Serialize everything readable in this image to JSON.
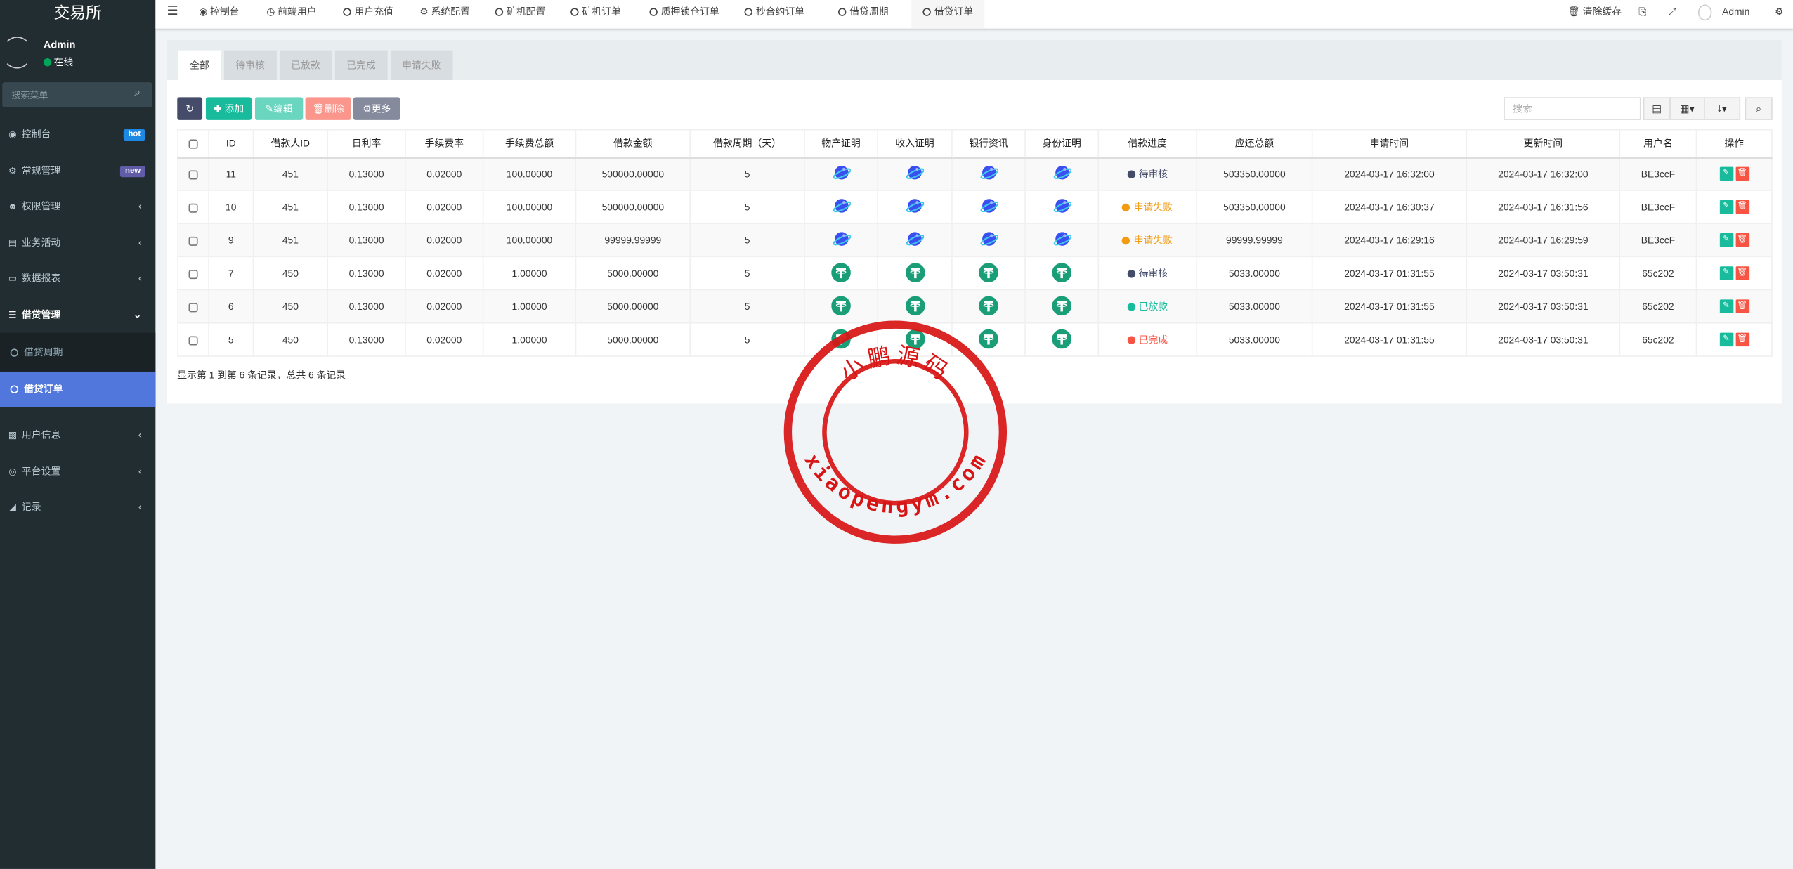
{
  "app": {
    "title": "交易所"
  },
  "user": {
    "name": "Admin",
    "status": "在线"
  },
  "sidebar": {
    "search_placeholder": "搜索菜单",
    "items": [
      {
        "label": "控制台",
        "icon": "dashboard-icon",
        "badge": "hot",
        "badge_color": "#3c8dbc"
      },
      {
        "label": "常规管理",
        "icon": "cogs-icon",
        "badge": "new",
        "badge_color": "#605ca8"
      },
      {
        "label": "权限管理",
        "icon": "users-icon"
      },
      {
        "label": "业务活动",
        "icon": "newspaper-icon"
      },
      {
        "label": "数据报表",
        "icon": "file-icon"
      },
      {
        "label": "借贷管理",
        "icon": "list-icon",
        "open": true,
        "children": [
          {
            "label": "借贷周期"
          },
          {
            "label": "借贷订单",
            "active": true
          }
        ]
      },
      {
        "label": "用户信息",
        "icon": "contact-card-icon"
      },
      {
        "label": "平台设置",
        "icon": "target-icon"
      },
      {
        "label": "记录",
        "icon": "area-chart-icon"
      }
    ]
  },
  "topnav": {
    "items": [
      {
        "label": "控制台",
        "icon": "dashboard-icon"
      },
      {
        "label": "前端用户",
        "icon": "clock-icon"
      },
      {
        "label": "用户充值",
        "icon": "circle-icon"
      },
      {
        "label": "系统配置",
        "icon": "gear-icon"
      },
      {
        "label": "矿机配置",
        "icon": "circle-icon"
      },
      {
        "label": "矿机订单",
        "icon": "circle-icon"
      },
      {
        "label": "质押锁仓订单",
        "icon": "circle-icon"
      },
      {
        "label": "秒合约订单",
        "icon": "circle-icon"
      },
      {
        "label": "借贷周期",
        "icon": "circle-icon"
      },
      {
        "label": "借贷订单",
        "icon": "circle-icon",
        "active": true
      }
    ],
    "clear_cache": "清除缓存",
    "admin": "Admin"
  },
  "tabs": [
    {
      "label": "全部",
      "active": true
    },
    {
      "label": "待审核"
    },
    {
      "label": "已放款"
    },
    {
      "label": "已完成"
    },
    {
      "label": "申请失败"
    }
  ],
  "toolbar": {
    "add": "添加",
    "edit": "编辑",
    "delete": "删除",
    "more": "更多",
    "search_placeholder": "搜索"
  },
  "colors": {
    "primary": "#5177dd",
    "success": "#18bc9c",
    "danger": "#f75444",
    "warning": "#f39c12",
    "dark": "#444c69"
  },
  "table": {
    "headers": [
      "ID",
      "借款人ID",
      "日利率",
      "手续费率",
      "手续费总额",
      "借款金额",
      "借款周期（天）",
      "物产证明",
      "收入证明",
      "银行资讯",
      "身份证明",
      "借款进度",
      "应还总额",
      "申请时间",
      "更新时间",
      "用户名",
      "操作"
    ],
    "rows": [
      {
        "id": "11",
        "borrower_id": "451",
        "daily_rate": "0.13000",
        "fee_rate": "0.02000",
        "fee_total": "100.00000",
        "amount": "500000.00000",
        "period": "5",
        "proof_icon": "planet",
        "status": "待审核",
        "status_color": "#444c69",
        "repay_total": "503350.00000",
        "apply_time": "2024-03-17 16:32:00",
        "update_time": "2024-03-17 16:32:00",
        "username": "BE3ccF"
      },
      {
        "id": "10",
        "borrower_id": "451",
        "daily_rate": "0.13000",
        "fee_rate": "0.02000",
        "fee_total": "100.00000",
        "amount": "500000.00000",
        "period": "5",
        "proof_icon": "planet",
        "status": "申请失败",
        "status_color": "#f39c12",
        "repay_total": "503350.00000",
        "apply_time": "2024-03-17 16:30:37",
        "update_time": "2024-03-17 16:31:56",
        "username": "BE3ccF"
      },
      {
        "id": "9",
        "borrower_id": "451",
        "daily_rate": "0.13000",
        "fee_rate": "0.02000",
        "fee_total": "100.00000",
        "amount": "99999.99999",
        "period": "5",
        "proof_icon": "planet",
        "status": "申请失败",
        "status_color": "#f39c12",
        "repay_total": "99999.99999",
        "apply_time": "2024-03-17 16:29:16",
        "update_time": "2024-03-17 16:29:59",
        "username": "BE3ccF"
      },
      {
        "id": "7",
        "borrower_id": "450",
        "daily_rate": "0.13000",
        "fee_rate": "0.02000",
        "fee_total": "1.00000",
        "amount": "5000.00000",
        "period": "5",
        "proof_icon": "tether",
        "status": "待审核",
        "status_color": "#444c69",
        "repay_total": "5033.00000",
        "apply_time": "2024-03-17 01:31:55",
        "update_time": "2024-03-17 03:50:31",
        "username": "65c202"
      },
      {
        "id": "6",
        "borrower_id": "450",
        "daily_rate": "0.13000",
        "fee_rate": "0.02000",
        "fee_total": "1.00000",
        "amount": "5000.00000",
        "period": "5",
        "proof_icon": "tether",
        "status": "已放款",
        "status_color": "#18bc9c",
        "repay_total": "5033.00000",
        "apply_time": "2024-03-17 01:31:55",
        "update_time": "2024-03-17 03:50:31",
        "username": "65c202"
      },
      {
        "id": "5",
        "borrower_id": "450",
        "daily_rate": "0.13000",
        "fee_rate": "0.02000",
        "fee_total": "1.00000",
        "amount": "5000.00000",
        "period": "5",
        "proof_icon": "tether",
        "status": "已完成",
        "status_color": "#f75444",
        "repay_total": "5033.00000",
        "apply_time": "2024-03-17 01:31:55",
        "update_time": "2024-03-17 03:50:31",
        "username": "65c202"
      }
    ],
    "footer": "显示第 1 到第 6 条记录，总共 6 条记录"
  },
  "watermark": {
    "top": "小鹏源码",
    "bottom": "xiaopengym.com",
    "color": "#d81414"
  }
}
